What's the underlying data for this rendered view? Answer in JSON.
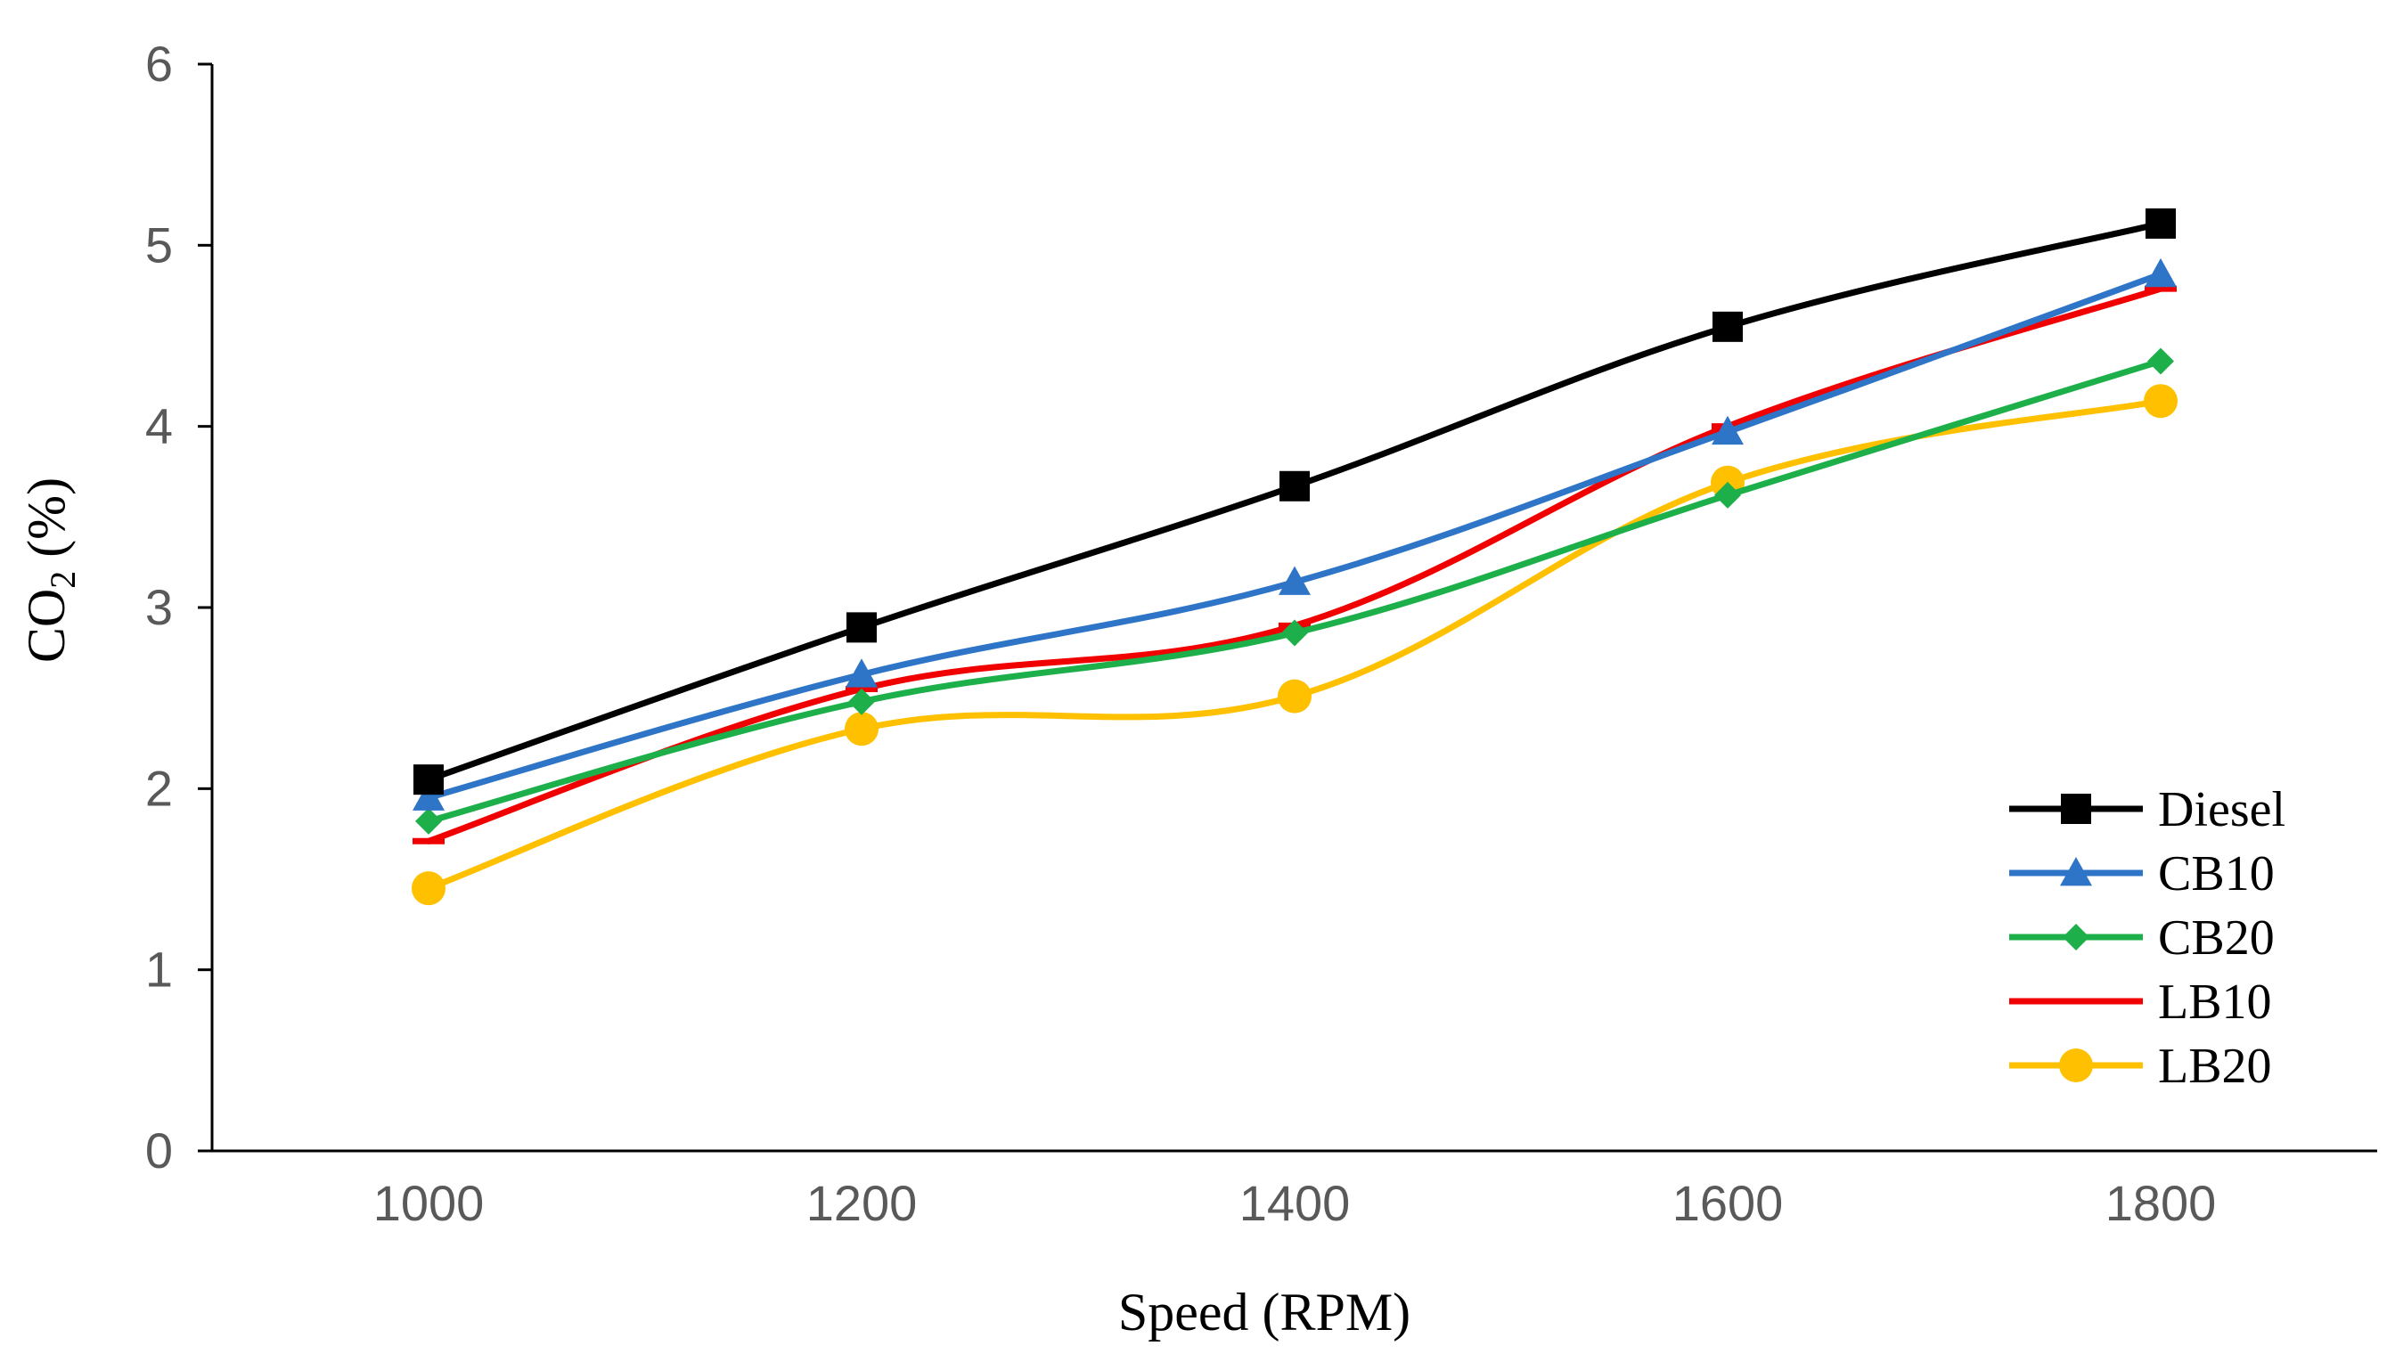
{
  "chart_data": {
    "type": "line",
    "title": "",
    "xlabel": "Speed (RPM)",
    "ylabel_main": "CO",
    "ylabel_sub": "2",
    "ylabel_rest": " (%)",
    "x": [
      1000,
      1200,
      1400,
      1600,
      1800
    ],
    "xtick_labels": [
      "1000",
      "1200",
      "1400",
      "1600",
      "1800"
    ],
    "xlim": [
      900,
      1900
    ],
    "ylim": [
      0,
      6
    ],
    "ytick_labels": [
      "0",
      "1",
      "2",
      "3",
      "4",
      "5",
      "6"
    ],
    "yticks": [
      0,
      1,
      2,
      3,
      4,
      5,
      6
    ],
    "grid": false,
    "legend_position": "bottom-right",
    "series": [
      {
        "name": "Diesel",
        "color": "#000000",
        "marker": "square",
        "values": [
          2.05,
          2.89,
          3.67,
          4.55,
          5.12
        ]
      },
      {
        "name": "CB10",
        "color": "#2E75C8",
        "marker": "triangle",
        "values": [
          1.95,
          2.63,
          3.14,
          3.97,
          4.84
        ]
      },
      {
        "name": "CB20",
        "color": "#1DB04A",
        "marker": "diamond",
        "values": [
          1.82,
          2.48,
          2.86,
          3.62,
          4.36
        ]
      },
      {
        "name": "LB10",
        "color": "#F00000",
        "marker": "dash",
        "values": [
          1.71,
          2.55,
          2.9,
          4.0,
          4.76
        ]
      },
      {
        "name": "LB20",
        "color": "#FFC000",
        "marker": "circle",
        "values": [
          1.45,
          2.33,
          2.51,
          3.69,
          4.14
        ]
      }
    ]
  }
}
